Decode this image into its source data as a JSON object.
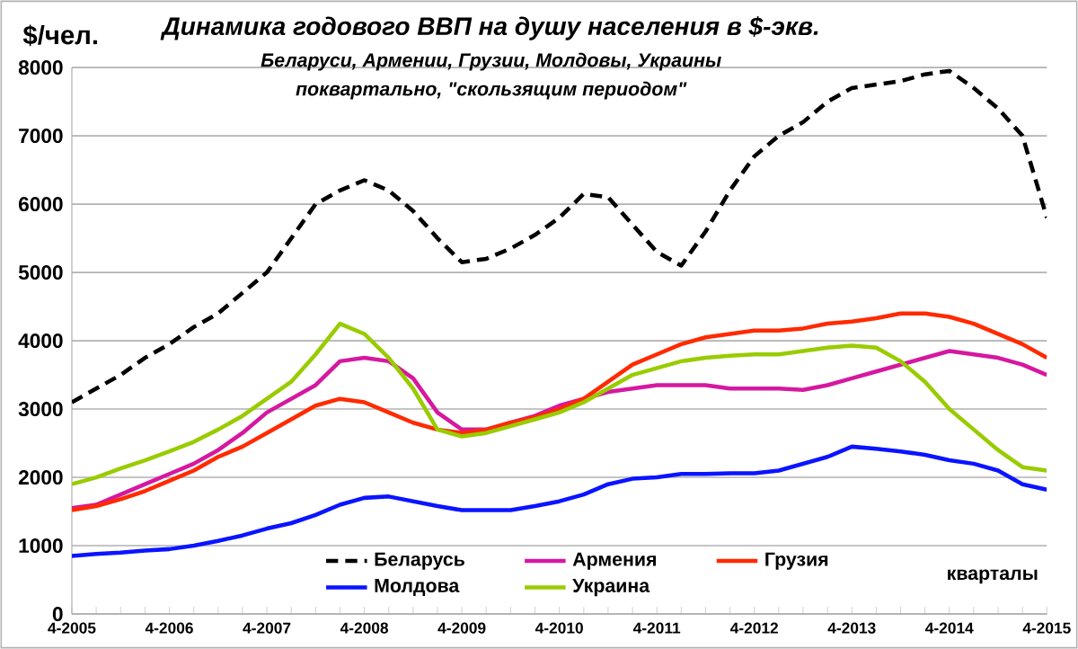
{
  "chart_data": {
    "type": "line",
    "title": "Динамика годового ВВП на душу населения в $-экв.",
    "subtitle": "Беларуси,  Армении,  Грузии, Молдовы,  Украины",
    "annotations": [
      "поквартально,  \"скользящим периодом\""
    ],
    "ylabel": "$/чел.",
    "xlabel": "кварталы",
    "categories": [
      "4-2005",
      null,
      null,
      null,
      "4-2006",
      null,
      null,
      null,
      "4-2007",
      null,
      null,
      null,
      "4-2008",
      null,
      null,
      null,
      "4-2009",
      null,
      null,
      null,
      "4-2010",
      null,
      null,
      null,
      "4-2011",
      null,
      null,
      null,
      "4-2012",
      null,
      null,
      null,
      "4-2013",
      null,
      null,
      null,
      "4-2014",
      null,
      null,
      null,
      "4-2015"
    ],
    "ylim": [
      0,
      8000
    ],
    "yticks": [
      0,
      1000,
      2000,
      3000,
      4000,
      5000,
      6000,
      7000,
      8000
    ],
    "grid": "y",
    "legend": "bottom",
    "marker": "none",
    "series": [
      {
        "name": "Беларусь",
        "color": "#000000",
        "line_style": "dashed",
        "values": [
          3100,
          3300,
          3500,
          3750,
          3950,
          4200,
          4400,
          4700,
          5000,
          5500,
          6000,
          6200,
          6350,
          6200,
          5900,
          5500,
          5150,
          5200,
          5350,
          5550,
          5800,
          6150,
          6100,
          5700,
          5300,
          5100,
          5600,
          6200,
          6700,
          7000,
          7200,
          7500,
          7700,
          7750,
          7800,
          7900,
          7950,
          7700,
          7400,
          7000,
          5800
        ]
      },
      {
        "name": "Армения",
        "color": "#d6189f",
        "line_style": "solid",
        "values": [
          1550,
          1600,
          1750,
          1900,
          2050,
          2200,
          2400,
          2650,
          2950,
          3150,
          3350,
          3700,
          3750,
          3700,
          3450,
          2950,
          2700,
          2700,
          2800,
          2900,
          3050,
          3150,
          3250,
          3300,
          3350,
          3350,
          3350,
          3300,
          3300,
          3300,
          3280,
          3350,
          3450,
          3550,
          3650,
          3750,
          3850,
          3800,
          3750,
          3650,
          3500
        ]
      },
      {
        "name": "Грузия",
        "color": "#ff2a00",
        "line_style": "solid",
        "values": [
          1520,
          1580,
          1680,
          1800,
          1950,
          2100,
          2300,
          2450,
          2650,
          2850,
          3050,
          3150,
          3100,
          2950,
          2800,
          2700,
          2650,
          2700,
          2800,
          2880,
          3000,
          3150,
          3400,
          3650,
          3800,
          3950,
          4050,
          4100,
          4150,
          4150,
          4180,
          4250,
          4280,
          4330,
          4400,
          4400,
          4350,
          4250,
          4100,
          3950,
          3750
        ]
      },
      {
        "name": "Молдова",
        "color": "#0a14ff",
        "line_style": "solid",
        "values": [
          850,
          880,
          900,
          930,
          950,
          1000,
          1070,
          1150,
          1250,
          1330,
          1450,
          1600,
          1700,
          1720,
          1650,
          1580,
          1520,
          1520,
          1520,
          1580,
          1650,
          1750,
          1900,
          1980,
          2000,
          2050,
          2050,
          2060,
          2060,
          2100,
          2200,
          2300,
          2450,
          2420,
          2380,
          2330,
          2250,
          2200,
          2100,
          1900,
          1820
        ]
      },
      {
        "name": "Украина",
        "color": "#99cc00",
        "line_style": "solid",
        "values": [
          1900,
          2000,
          2130,
          2250,
          2380,
          2520,
          2700,
          2900,
          3150,
          3400,
          3800,
          4250,
          4100,
          3750,
          3300,
          2700,
          2600,
          2650,
          2750,
          2850,
          2950,
          3100,
          3300,
          3500,
          3600,
          3700,
          3750,
          3780,
          3800,
          3800,
          3850,
          3900,
          3930,
          3900,
          3700,
          3400,
          3000,
          2700,
          2400,
          2150,
          2100
        ]
      }
    ]
  }
}
